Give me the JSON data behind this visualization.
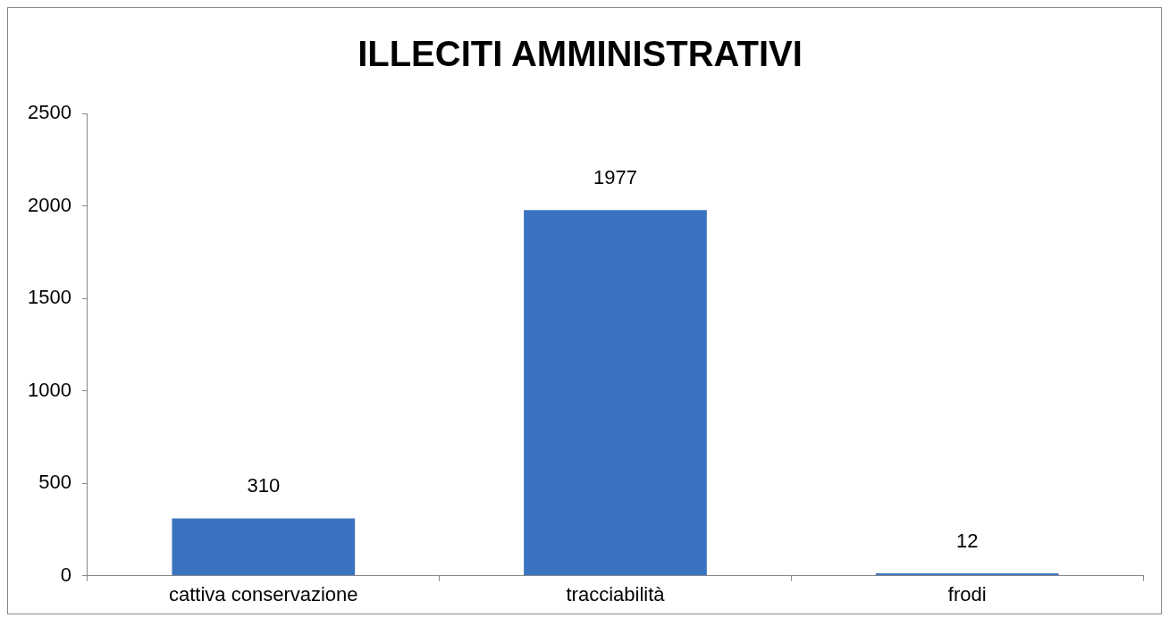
{
  "chart_data": {
    "type": "bar",
    "title": "ILLECITI AMMINISTRATIVI",
    "categories": [
      "cattiva conservazione",
      "tracciabilità",
      "frodi"
    ],
    "values": [
      310,
      1977,
      12
    ],
    "color": "#3a74c0",
    "ylim": [
      0,
      2500
    ],
    "yticks": [
      0,
      500,
      1000,
      1500,
      2000,
      2500
    ],
    "grid": false,
    "legend": false,
    "data_labels": true
  }
}
